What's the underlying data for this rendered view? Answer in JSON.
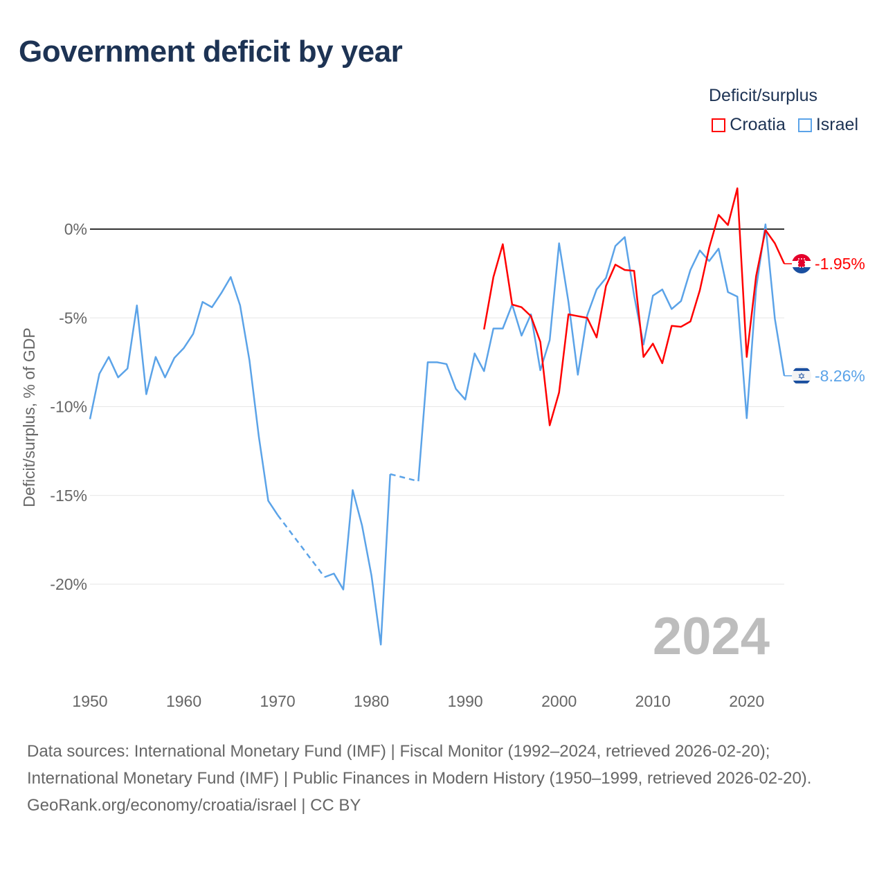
{
  "title": "Government deficit by year",
  "legend": {
    "title": "Deficit/surplus",
    "items": [
      {
        "name": "Croatia",
        "color": "#ff0000"
      },
      {
        "name": "Israel",
        "color": "#5ba3e8"
      }
    ]
  },
  "year_watermark": "2024",
  "footer": {
    "sources": "Data sources: International Monetary Fund (IMF) | Fiscal Monitor (1992–2024, retrieved 2026-02-20); International Monetary Fund (IMF) | Public Finances in Modern History (1950–1999, retrieved 2026-02-20).",
    "credit": "GeoRank.org/economy/croatia/israel | CC BY"
  },
  "chart_data": {
    "type": "line",
    "title": "Government deficit by year",
    "xlabel": "",
    "ylabel": "Deficit/surplus, % of GDP",
    "xlim": [
      1950,
      2024
    ],
    "ylim": [
      -24.5,
      3.5
    ],
    "x_ticks": [
      1950,
      1960,
      1970,
      1980,
      1990,
      2000,
      2010,
      2020
    ],
    "x_tick_labels": [
      "1950",
      "1960",
      "1970",
      "1980",
      "1990",
      "2000",
      "2010",
      "2020"
    ],
    "y_ticks": [
      0,
      -5,
      -10,
      -15,
      -20
    ],
    "y_tick_labels": [
      "0%",
      "-5%",
      "-10%",
      "-15%",
      "-20%"
    ],
    "legend_position": "top-right",
    "series": [
      {
        "name": "Croatia",
        "color": "#ff0000",
        "end_label": "-1.95%",
        "start_year": 1992,
        "values": [
          -5.65,
          -2.7,
          -0.85,
          -4.25,
          -4.4,
          -4.9,
          -6.35,
          -11.05,
          -9.2,
          -4.8,
          -4.9,
          -5.0,
          -6.1,
          -3.2,
          -2.0,
          -2.3,
          -2.35,
          -7.2,
          -6.45,
          -7.55,
          -5.45,
          -5.5,
          -5.2,
          -3.45,
          -1.05,
          0.8,
          0.23,
          2.3,
          -7.2,
          -2.65,
          -0.05,
          -0.8,
          -1.95
        ]
      },
      {
        "name": "Israel",
        "color": "#5ba3e8",
        "end_label": "-8.26%",
        "start_year": 1950,
        "values": [
          -10.7,
          -8.15,
          -7.2,
          -8.35,
          -7.85,
          -4.3,
          -9.3,
          -7.2,
          -8.35,
          -7.25,
          -6.7,
          -5.9,
          -4.1,
          -4.4,
          -3.6,
          -2.7,
          -4.3,
          -7.4,
          -11.7,
          -15.3,
          -16.1,
          null,
          null,
          null,
          null,
          -19.6,
          -19.4,
          -20.3,
          -14.7,
          -16.7,
          -19.5,
          -23.4,
          -13.8,
          null,
          null,
          -14.2,
          -7.5,
          -7.5,
          -7.6,
          -9.0,
          -9.6,
          -7.0,
          -8.0,
          -5.6,
          -5.6,
          -4.25,
          -6.0,
          -4.8,
          -7.95,
          -6.25,
          -0.8,
          -4.1,
          -8.2,
          -4.85,
          -3.4,
          -2.75,
          -0.95,
          -0.45,
          -3.75,
          -6.5,
          -3.75,
          -3.4,
          -4.5,
          -4.05,
          -2.3,
          -1.2,
          -1.8,
          -1.1,
          -3.55,
          -3.8,
          -10.65,
          -3.35,
          0.27,
          -5.05,
          -8.26
        ]
      }
    ]
  }
}
